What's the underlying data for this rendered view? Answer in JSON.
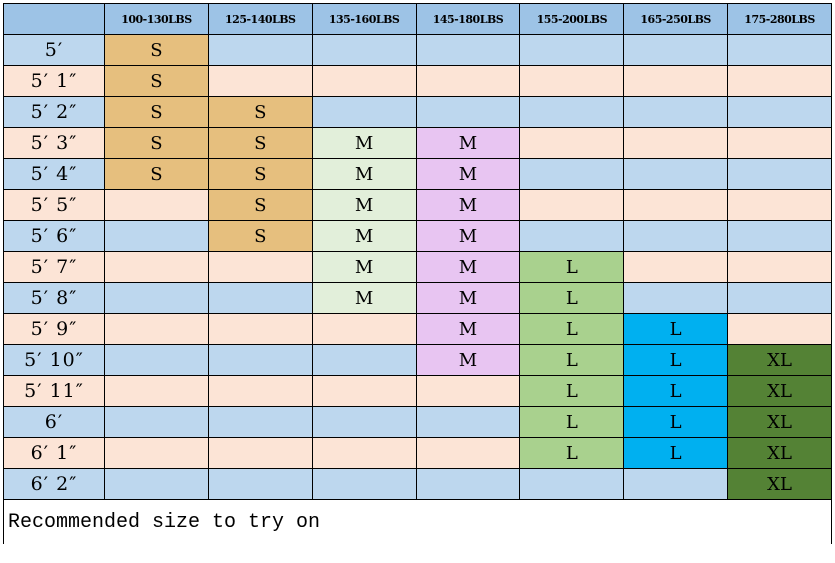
{
  "columns": [
    "",
    "100-130LBS",
    "125-140LBS",
    "135-160LBS",
    "145-180LBS",
    "155-200LBS",
    "165-250LBS",
    "175-280LBS"
  ],
  "rows": [
    {
      "height": "5′",
      "sizes": [
        "S",
        "",
        "",
        "",
        "",
        "",
        ""
      ]
    },
    {
      "height": "5′ 1″",
      "sizes": [
        "S",
        "",
        "",
        "",
        "",
        "",
        ""
      ]
    },
    {
      "height": "5′ 2″",
      "sizes": [
        "S",
        "S",
        "",
        "",
        "",
        "",
        ""
      ]
    },
    {
      "height": "5′ 3″",
      "sizes": [
        "S",
        "S",
        "M",
        "M",
        "",
        "",
        ""
      ]
    },
    {
      "height": "5′ 4″",
      "sizes": [
        "S",
        "S",
        "M",
        "M",
        "",
        "",
        ""
      ]
    },
    {
      "height": "5′ 5″",
      "sizes": [
        "",
        "S",
        "M",
        "M",
        "",
        "",
        ""
      ]
    },
    {
      "height": "5′ 6″",
      "sizes": [
        "",
        "S",
        "M",
        "M",
        "",
        "",
        ""
      ]
    },
    {
      "height": "5′ 7″",
      "sizes": [
        "",
        "",
        "M",
        "M",
        "L",
        "",
        ""
      ]
    },
    {
      "height": "5′ 8″",
      "sizes": [
        "",
        "",
        "M",
        "M",
        "L",
        "",
        ""
      ]
    },
    {
      "height": "5′ 9″",
      "sizes": [
        "",
        "",
        "",
        "M",
        "L",
        "L",
        ""
      ]
    },
    {
      "height": "5′ 10″",
      "sizes": [
        "",
        "",
        "",
        "M",
        "L",
        "L",
        "XL"
      ]
    },
    {
      "height": "5′ 11″",
      "sizes": [
        "",
        "",
        "",
        "",
        "L",
        "L",
        "XL"
      ]
    },
    {
      "height": "6′",
      "sizes": [
        "",
        "",
        "",
        "",
        "L",
        "L",
        "XL"
      ]
    },
    {
      "height": "6′ 1″",
      "sizes": [
        "",
        "",
        "",
        "",
        "L",
        "L",
        "XL"
      ]
    },
    {
      "height": "6′ 2″",
      "sizes": [
        "",
        "",
        "",
        "",
        "",
        "",
        "XL"
      ]
    }
  ],
  "footer": "Recommended size to try on",
  "colors": {
    "header": "#9dc3e6",
    "stripe_blue": "#bdd7ee",
    "stripe_peach": "#fce4d6",
    "column_fill": [
      "#e6bf7e",
      "#e6bf7e",
      "#e2efda",
      "#e8c5f2",
      "#a9d18e",
      "#00b0f0",
      "#548235"
    ]
  }
}
